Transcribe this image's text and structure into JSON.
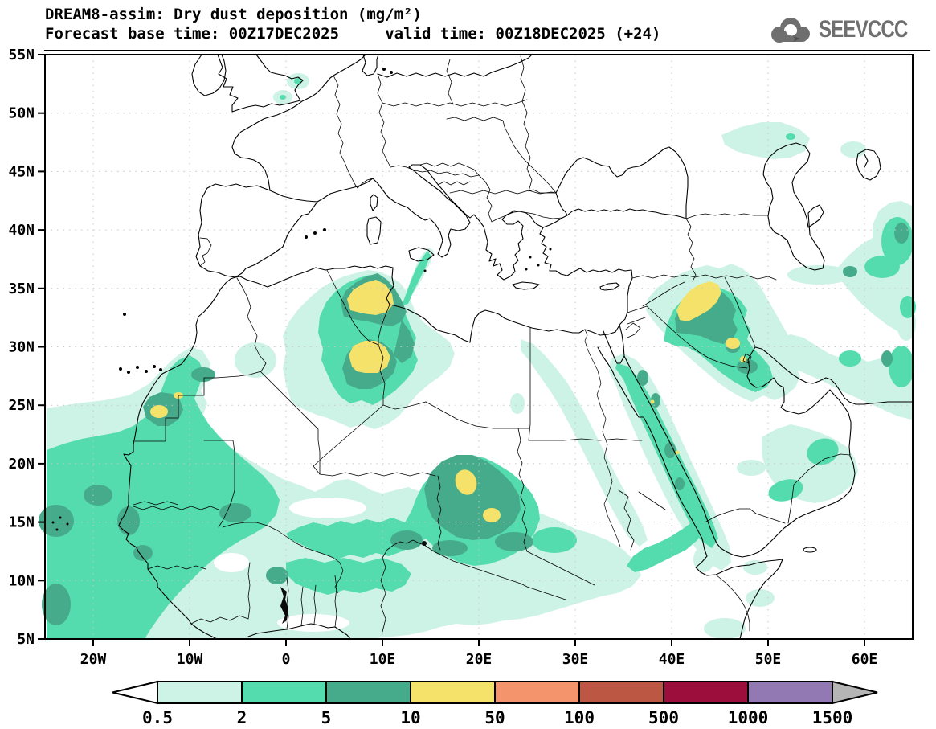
{
  "header": {
    "title": "DREAM8-assim: Dry dust deposition (mg/m²)",
    "subtitle": "Forecast base time: 00Z17DEC2025     valid time: 00Z18DEC2025 (+24)"
  },
  "logo": {
    "text": "SEEVCCC",
    "icon": "cloud-arrow-icon",
    "color": "#6f6f6f"
  },
  "axes": {
    "lat_labels": [
      "55N",
      "50N",
      "45N",
      "40N",
      "35N",
      "30N",
      "25N",
      "20N",
      "15N",
      "10N",
      "5N"
    ],
    "lat_values": [
      55,
      50,
      45,
      40,
      35,
      30,
      25,
      20,
      15,
      10,
      5
    ],
    "lon_labels": [
      "20W",
      "10W",
      "0",
      "10E",
      "20E",
      "30E",
      "40E",
      "50E",
      "60E"
    ],
    "lon_values": [
      -20,
      -10,
      0,
      10,
      20,
      30,
      40,
      50,
      60
    ],
    "lon_range": [
      -25,
      65
    ],
    "lat_range": [
      5,
      55
    ],
    "grid_style": "dotted"
  },
  "palette": {
    "c1": "#cdf2e6",
    "c2": "#55dcae",
    "c3": "#46ab8a",
    "c4": "#f5e26b",
    "grid": "#c6c6c6"
  },
  "colorbar": {
    "levels": [
      "0.5",
      "2",
      "5",
      "10",
      "50",
      "100",
      "500",
      "1000",
      "1500"
    ],
    "cell_colors": [
      "#cdf2e6",
      "#55dcae",
      "#46ab8a",
      "#f5e26b",
      "#f4946c",
      "#bc5744",
      "#9c0f3d",
      "#9279b4"
    ],
    "below_color": "#ffffff",
    "above_color": "#b5b5b5",
    "unit": "mg/m²"
  },
  "chart_data": {
    "type": "heatmap",
    "title": "DREAM8-assim: Dry dust deposition (mg/m²)",
    "units": "mg/m²",
    "lon_range": [
      -25,
      65
    ],
    "lat_range": [
      5,
      55
    ],
    "contour_levels": [
      0.5,
      2,
      5,
      10,
      50,
      100,
      500,
      1000,
      1500
    ],
    "regions": [
      {
        "area": "NE Algeria / Tunisia",
        "approx_lon": 8,
        "approx_lat": 33.5,
        "band": "10-50"
      },
      {
        "area": "Central Algeria",
        "approx_lon": 9,
        "approx_lat": 29.5,
        "band": "10-50"
      },
      {
        "area": "Chad / Bodele",
        "approx_lon": 19,
        "approx_lat": 18.5,
        "band": "10-50"
      },
      {
        "area": "SE Chad / Sudan border",
        "approx_lon": 21,
        "approx_lat": 15.5,
        "band": "10-50"
      },
      {
        "area": "Western Sahara",
        "approx_lon": -13,
        "approx_lat": 24.5,
        "band": "10-50"
      },
      {
        "area": "Iraq / Mesopotamia",
        "approx_lon": 43,
        "approx_lat": 33,
        "band": "10-50"
      },
      {
        "area": "Kuwait / NE Saudi Arabia",
        "approx_lon": 46.5,
        "approx_lat": 29.7,
        "band": "10-50"
      },
      {
        "area": "West Africa / E Atlantic",
        "approx_lon": -15,
        "approx_lat": 15,
        "band": "5-10"
      },
      {
        "area": "Senegal coast",
        "approx_lon": -16,
        "approx_lat": 14.5,
        "band": "5-10"
      },
      {
        "area": "Red Sea corridor",
        "approx_lon": 38,
        "approx_lat": 20,
        "band": "2-5"
      },
      {
        "area": "S Iran / Zagros",
        "approx_lon": 55,
        "approx_lat": 30,
        "band": "5-10"
      },
      {
        "area": "Oman / Rub al Khali",
        "approx_lon": 53,
        "approx_lat": 19,
        "band": "2-5"
      },
      {
        "area": "SE England",
        "approx_lon": 0.5,
        "approx_lat": 52,
        "band": "0.5-2"
      },
      {
        "area": "N Caspian lowland",
        "approx_lon": 50,
        "approx_lat": 47,
        "band": "0.5-2"
      },
      {
        "area": "Horn of Africa",
        "approx_lon": 45,
        "approx_lat": 9,
        "band": "0.5-2"
      }
    ]
  }
}
